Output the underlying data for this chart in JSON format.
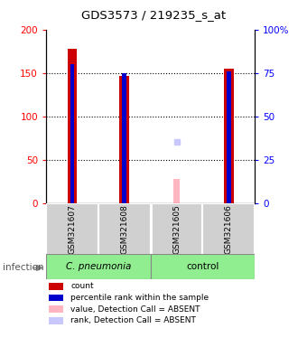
{
  "title": "GDS3573 / 219235_s_at",
  "samples": [
    "GSM321607",
    "GSM321608",
    "GSM321605",
    "GSM321606"
  ],
  "count_values": [
    178,
    146,
    0,
    155
  ],
  "percentile_values": [
    160,
    150,
    0,
    152
  ],
  "absent_value_values": [
    0,
    0,
    28,
    0
  ],
  "absent_rank_values": [
    0,
    0,
    70,
    0
  ],
  "count_color": "#CC0000",
  "percentile_color": "#0000CC",
  "absent_value_color": "#FFB6C1",
  "absent_rank_color": "#C8C8FF",
  "ylim_left": [
    0,
    200
  ],
  "ylim_right": [
    0,
    100
  ],
  "yticks_left": [
    0,
    50,
    100,
    150,
    200
  ],
  "yticks_right": [
    0,
    25,
    50,
    75,
    100
  ],
  "ytick_labels_right": [
    "0",
    "25",
    "50",
    "75",
    "100%"
  ],
  "bar_width": 0.18,
  "pct_bar_width": 0.08,
  "legend_items": [
    {
      "label": "count",
      "color": "#CC0000"
    },
    {
      "label": "percentile rank within the sample",
      "color": "#0000CC"
    },
    {
      "label": "value, Detection Call = ABSENT",
      "color": "#FFB6C1"
    },
    {
      "label": "rank, Detection Call = ABSENT",
      "color": "#C8C8FF"
    }
  ]
}
